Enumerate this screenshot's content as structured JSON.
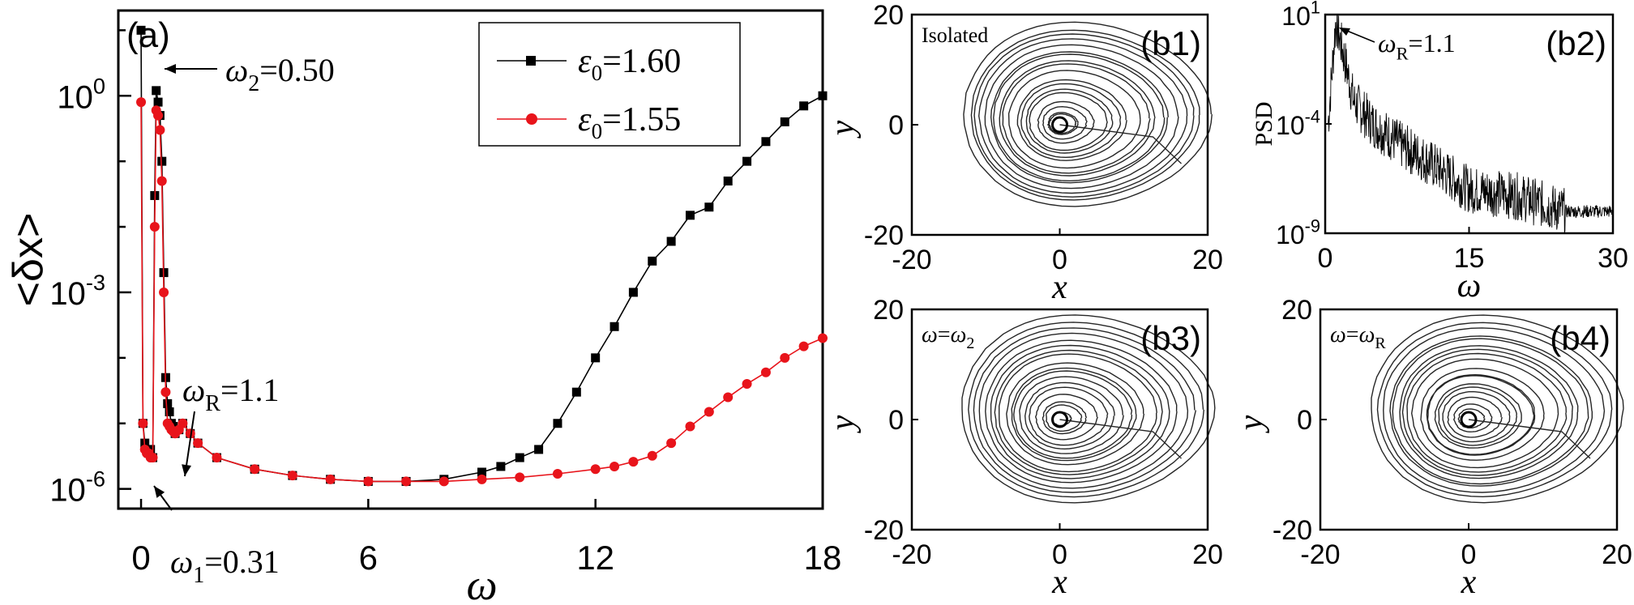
{
  "colors": {
    "black_series": "#000000",
    "red_series": "#e8141b",
    "frame": "#000000"
  },
  "chart_data": [
    {
      "panel": "(a)",
      "type": "line",
      "xlabel": "ω",
      "ylabel": "<δx>",
      "yscale": "log",
      "xlim": [
        -0.6,
        18
      ],
      "ylim": [
        5e-07,
        20
      ],
      "xticks": [
        0,
        6,
        12,
        18
      ],
      "yticks": [
        {
          "base": "10",
          "exp": "0"
        },
        {
          "base": "10",
          "exp": "-3"
        },
        {
          "base": "10",
          "exp": "-6"
        }
      ],
      "legend": {
        "placement": "top-right",
        "entries": [
          {
            "label": "ε",
            "sub": "0",
            "value": "=1.60",
            "color": "#000000",
            "marker": "square"
          },
          {
            "label": "ε",
            "sub": "0",
            "value": "=1.55",
            "color": "#e8141b",
            "marker": "circle"
          }
        ]
      },
      "annotations": [
        {
          "sym": "ω",
          "sub": "2",
          "text": "=0.50",
          "x": 0.5,
          "y": 1.2
        },
        {
          "sym": "ω",
          "sub": "R",
          "text": "=1.1",
          "x": 1.1,
          "y": 1e-05
        },
        {
          "sym": "ω",
          "sub": "1",
          "text": "=0.31",
          "x": 0.31,
          "y": 3e-06
        }
      ],
      "series": [
        {
          "name": "ε0=1.60",
          "color": "#000000",
          "marker": "square",
          "x": [
            0,
            0.05,
            0.1,
            0.15,
            0.2,
            0.25,
            0.31,
            0.36,
            0.4,
            0.45,
            0.5,
            0.55,
            0.6,
            0.65,
            0.7,
            0.75,
            0.8,
            0.85,
            0.9,
            1.0,
            1.1,
            1.3,
            1.5,
            2,
            3,
            4,
            5,
            6,
            7,
            8,
            9,
            9.5,
            10,
            10.5,
            11,
            11.5,
            12,
            12.5,
            13,
            13.5,
            14,
            14.5,
            15,
            15.5,
            16,
            16.5,
            17,
            17.5,
            18
          ],
          "y": [
            10,
            1e-05,
            5e-06,
            4e-06,
            3.5e-06,
            4e-06,
            3e-06,
            0.03,
            1.2,
            0.8,
            0.5,
            0.1,
            0.002,
            5e-05,
            2e-05,
            1.5e-05,
            1e-05,
            9e-06,
            7e-06,
            8e-06,
            1e-05,
            7e-06,
            5e-06,
            3e-06,
            2e-06,
            1.6e-06,
            1.4e-06,
            1.3e-06,
            1.3e-06,
            1.4e-06,
            1.8e-06,
            2.2e-06,
            3e-06,
            4e-06,
            1e-05,
            3e-05,
            0.0001,
            0.0003,
            0.001,
            0.003,
            0.006,
            0.015,
            0.02,
            0.05,
            0.1,
            0.2,
            0.4,
            0.7,
            1
          ]
        },
        {
          "name": "ε0=1.55",
          "color": "#e8141b",
          "marker": "circle",
          "x": [
            0,
            0.05,
            0.1,
            0.15,
            0.2,
            0.25,
            0.31,
            0.36,
            0.4,
            0.45,
            0.5,
            0.55,
            0.6,
            0.65,
            0.7,
            0.75,
            0.8,
            0.85,
            0.9,
            1.0,
            1.1,
            1.3,
            1.5,
            2,
            3,
            4,
            5,
            6,
            7,
            8,
            9,
            10,
            11,
            12,
            12.5,
            13,
            13.5,
            14,
            14.5,
            15,
            15.5,
            16,
            16.5,
            17,
            17.5,
            18
          ],
          "y": [
            0.8,
            1e-05,
            4e-06,
            3.5e-06,
            3.5e-06,
            3e-06,
            3e-06,
            0.01,
            0.6,
            0.5,
            0.3,
            0.05,
            0.001,
            3e-05,
            1e-05,
            9e-06,
            8e-06,
            7.5e-06,
            7e-06,
            8e-06,
            1e-05,
            7e-06,
            5e-06,
            3e-06,
            2e-06,
            1.6e-06,
            1.4e-06,
            1.3e-06,
            1.3e-06,
            1.3e-06,
            1.4e-06,
            1.5e-06,
            1.7e-06,
            2e-06,
            2.2e-06,
            2.6e-06,
            3.2e-06,
            5e-06,
            9e-06,
            1.5e-05,
            2.5e-05,
            4e-05,
            6e-05,
            0.0001,
            0.00015,
            0.0002
          ]
        }
      ]
    },
    {
      "panel": "(b1)",
      "type": "line",
      "title": "Isolated",
      "xlabel": "x",
      "ylabel": "y",
      "xlim": [
        -20,
        20
      ],
      "ylim": [
        -20,
        20
      ],
      "xticks": [
        "-20",
        "0",
        "20"
      ],
      "yticks": [
        "20",
        "0",
        "-20"
      ]
    },
    {
      "panel": "(b2)",
      "type": "line",
      "xlabel": "ω",
      "ylabel": "PSD",
      "yscale": "log",
      "xlim": [
        0,
        30
      ],
      "ylim": [
        1e-09,
        10
      ],
      "xticks": [
        "0",
        "15",
        "30"
      ],
      "yticks": [
        {
          "base": "10",
          "exp": "1"
        },
        {
          "base": "10",
          "exp": "-4"
        },
        {
          "base": "10",
          "exp": "-9"
        }
      ],
      "annotations": [
        {
          "sym": "ω",
          "sub": "R",
          "text": "=1.1",
          "x": 1.1,
          "y": 5
        }
      ],
      "series": [
        {
          "x": [
            0.3,
            1.1,
            2,
            3,
            5,
            8,
            10,
            15,
            20,
            25,
            28,
            30
          ],
          "y": [
            0.0001,
            5,
            0.1,
            0.001,
            0.0001,
            1e-05,
            3e-06,
            1e-07,
            5e-08,
            1e-08,
            1e-08,
            1e-08
          ]
        }
      ]
    },
    {
      "panel": "(b3)",
      "type": "line",
      "title": {
        "sym": "ω",
        "eq": "=",
        "sym2": "ω",
        "sub": "2"
      },
      "xlabel": "x",
      "ylabel": "y",
      "xlim": [
        -20,
        20
      ],
      "ylim": [
        -20,
        20
      ],
      "xticks": [
        "-20",
        "0",
        "20"
      ],
      "yticks": [
        "20",
        "0",
        "-20"
      ]
    },
    {
      "panel": "(b4)",
      "type": "line",
      "title": {
        "sym": "ω",
        "eq": "=",
        "sym2": "ω",
        "sub": "R"
      },
      "xlabel": "x",
      "ylabel": "y",
      "xlim": [
        -20,
        20
      ],
      "ylim": [
        -20,
        20
      ],
      "xticks": [
        "-20",
        "0",
        "20"
      ],
      "yticks": [
        "20",
        "0",
        "-20"
      ]
    }
  ]
}
